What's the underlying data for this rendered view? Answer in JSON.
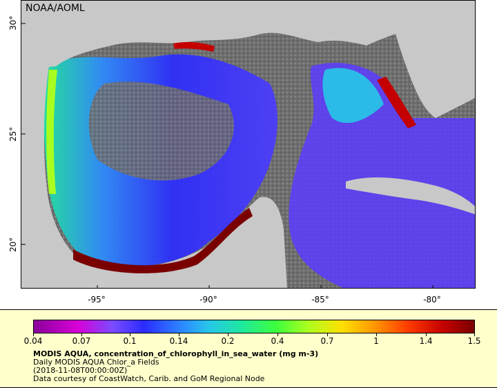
{
  "map": {
    "credit": "NOAA/AOML",
    "lat_ticks": [
      "30°",
      "25°",
      "20°"
    ],
    "lon_ticks": [
      "-95°",
      "-90°",
      "-85°",
      "-80°"
    ]
  },
  "legend": {
    "colorbar_ticks": [
      "0.04",
      "0.07",
      "0.1",
      "0.14",
      "0.2",
      "0.4",
      "0.7",
      "1",
      "1.4",
      "1.5"
    ],
    "variable_title": "MODIS AQUA, concentration_of_chlorophyll_in_sea_water (mg m-3)",
    "dataset": "Daily MODIS AQUA Chlor_a Fields",
    "time": "(2018-11-08T00:00:00Z)",
    "source": "Data courtesy of CoastWatch, Carib. and GoM Regional Node"
  },
  "colors": {
    "land": "#c8c8c8",
    "no_data": "#6f6f6f",
    "coastal_high": "#7a0000"
  }
}
